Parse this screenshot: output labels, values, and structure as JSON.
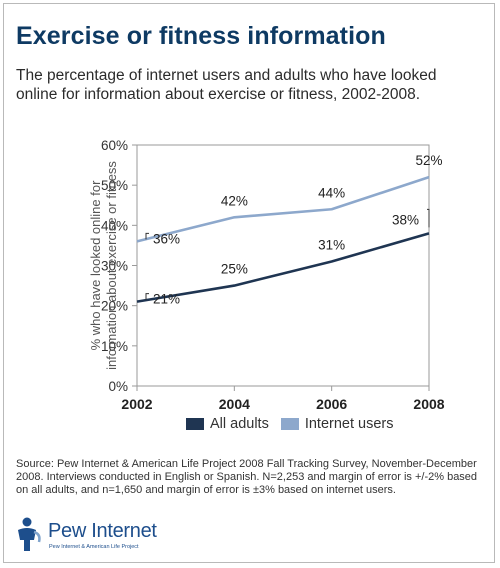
{
  "header": {
    "title": "Exercise or fitness information",
    "subtitle": "The percentage of internet users and adults who have looked online for information about exercise or fitness, 2002-2008."
  },
  "chart_data": {
    "type": "line",
    "x": [
      2002,
      2004,
      2006,
      2008
    ],
    "x_tick_labels": [
      "2002",
      "2004",
      "2006",
      "2008"
    ],
    "y_tick_labels": [
      "0%",
      "10%",
      "20%",
      "30%",
      "40%",
      "50%",
      "60%"
    ],
    "ylim": [
      0,
      60
    ],
    "ylabel": "% who have looked online for information about exercise or fitness",
    "xlabel": "",
    "grid": false,
    "legend_position": "bottom",
    "series": [
      {
        "name": "All adults",
        "values": [
          21,
          25,
          31,
          38
        ],
        "labels": [
          "21%",
          "25%",
          "31%",
          "38%"
        ],
        "color": "#1f3552"
      },
      {
        "name": "Internet users",
        "values": [
          36,
          42,
          44,
          52
        ],
        "labels": [
          "36%",
          "42%",
          "44%",
          "52%"
        ],
        "color": "#8da8cc"
      }
    ]
  },
  "footer": {
    "source": "Source:  Pew Internet & American Life Project 2008 Fall Tracking Survey, November-December 2008. Interviews conducted in English or Spanish.   N=2,253 and margin of error is +/-2% based on all adults, and n=1,650 and margin of error is ±3% based on internet users."
  },
  "logo": {
    "name": "Pew Internet",
    "tagline": "Pew Internet & American Life Project",
    "icon": "pew-person-icon",
    "color": "#1d4e8c"
  }
}
